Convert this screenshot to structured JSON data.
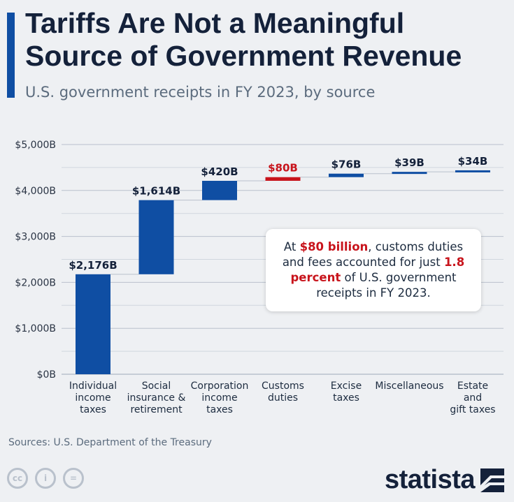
{
  "title": "Tariffs Are Not a Meaningful Source of Government Revenue",
  "subtitle": "U.S. government receipts in FY 2023, by source",
  "chart_data": {
    "type": "waterfall",
    "title": "Tariffs Are Not a Meaningful Source of Government Revenue",
    "subtitle": "U.S. government receipts in FY 2023, by source",
    "categories": [
      "Individual income taxes",
      "Social insurance & retirement",
      "Corporation income taxes",
      "Customs duties",
      "Excise taxes",
      "Miscellaneous",
      "Estate and gift taxes"
    ],
    "category_lines": [
      [
        "Individual",
        "income",
        "taxes"
      ],
      [
        "Social",
        "insurance &",
        "retirement"
      ],
      [
        "Corporation",
        "income",
        "taxes"
      ],
      [
        "Customs",
        "duties"
      ],
      [
        "Excise",
        "taxes"
      ],
      [
        "Miscellaneous"
      ],
      [
        "Estate",
        "and",
        "gift taxes"
      ]
    ],
    "values": [
      2176,
      1614,
      420,
      80,
      76,
      39,
      34
    ],
    "value_labels": [
      "$2,176B",
      "$1,614B",
      "$420B",
      "$80B",
      "$76B",
      "$39B",
      "$34B"
    ],
    "highlight_index": 3,
    "ylim": [
      0,
      5000
    ],
    "yticks": [
      0,
      1000,
      2000,
      3000,
      4000,
      5000
    ],
    "ytick_labels": [
      "$0B",
      "$1,000B",
      "$2,000B",
      "$3,000B",
      "$4,000B",
      "$5,000B"
    ],
    "unit": "billion USD",
    "grid": true
  },
  "callout": {
    "prefix": "At ",
    "highlight1": "$80 billion",
    "middle": ", customs duties and fees accounted for just ",
    "highlight2": "1.8 percent",
    "suffix": " of U.S. government receipts in FY 2023."
  },
  "source": "Sources: U.S. Department of the Treasury",
  "license_icons": [
    "cc-icon",
    "attribution-icon",
    "no-derivatives-icon"
  ],
  "license_labels": [
    "cc",
    "i",
    "="
  ],
  "brand": "statista",
  "colors": {
    "bar": "#0f4ea3",
    "highlight": "#c8141c",
    "accent": "#0f4ea3",
    "grid": "#b9c1cc"
  }
}
